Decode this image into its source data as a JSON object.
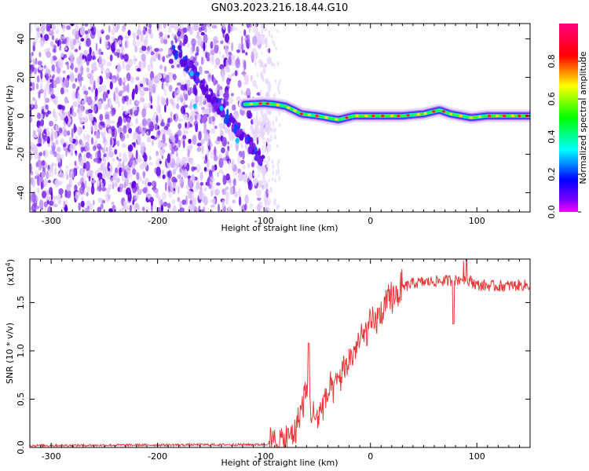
{
  "title": "GN03.2023.216.18.44.G10",
  "chart_data": [
    {
      "type": "heatmap",
      "xlabel": "Height of straight line (km)",
      "ylabel": "Frequency (Hz)",
      "xlim": [
        -320,
        150
      ],
      "ylim": [
        -50,
        48
      ],
      "xticks": [
        -300,
        -200,
        -100,
        0,
        100
      ],
      "yticks": [
        -40,
        -20,
        0,
        20,
        40
      ],
      "colorbar": {
        "label": "Normalized spectral amplitude",
        "range": [
          0,
          1
        ],
        "ticks": [
          0.0,
          0.2,
          0.4,
          0.6,
          0.8
        ],
        "colors": [
          "#ff00ff",
          "#ff0000",
          "#ffff00",
          "#00ff00",
          "#00ffff",
          "#0000ff",
          "#ff00ff"
        ]
      },
      "noise_region_x": [
        -320,
        -95
      ],
      "trend": [
        {
          "x": -185,
          "y": 35
        },
        {
          "x": -165,
          "y": 22
        },
        {
          "x": -150,
          "y": 10
        },
        {
          "x": -135,
          "y": 0
        },
        {
          "x": -120,
          "y": -10
        },
        {
          "x": -100,
          "y": -25
        }
      ],
      "trace": [
        {
          "x": -118,
          "y": 6
        },
        {
          "x": -100,
          "y": 6.5
        },
        {
          "x": -90,
          "y": 6
        },
        {
          "x": -80,
          "y": 5
        },
        {
          "x": -72,
          "y": 3
        },
        {
          "x": -65,
          "y": 1
        },
        {
          "x": -50,
          "y": 0
        },
        {
          "x": -40,
          "y": -1
        },
        {
          "x": -30,
          "y": -2
        },
        {
          "x": -15,
          "y": 0
        },
        {
          "x": 0,
          "y": 0
        },
        {
          "x": 30,
          "y": 0
        },
        {
          "x": 50,
          "y": 1
        },
        {
          "x": 65,
          "y": 3
        },
        {
          "x": 75,
          "y": 1
        },
        {
          "x": 85,
          "y": 0
        },
        {
          "x": 95,
          "y": -1
        },
        {
          "x": 110,
          "y": 0
        },
        {
          "x": 150,
          "y": 0
        }
      ]
    },
    {
      "type": "line",
      "xlabel": "Height of straight line (km)",
      "ylabel": "SNR (10 * v/v)",
      "yscale_label": "(x10",
      "yscale_exp": "4",
      "xlim": [
        -320,
        150
      ],
      "ylim": [
        0,
        1.95
      ],
      "xticks": [
        -300,
        -200,
        -100,
        0,
        100
      ],
      "yticks": [
        0.0,
        0.5,
        1.0,
        1.5
      ],
      "series": [
        {
          "color": "#e83a3a",
          "x": [
            -320,
            -100,
            -80,
            -70,
            -65,
            -60,
            -55,
            -50,
            -45,
            -40,
            -35,
            -30,
            -20,
            -10,
            0,
            10,
            20,
            30,
            40,
            60,
            80,
            90,
            100,
            120,
            150
          ],
          "values": [
            0.02,
            0.03,
            0.07,
            0.2,
            0.4,
            0.6,
            0.35,
            0.3,
            0.45,
            0.55,
            0.6,
            0.7,
            0.9,
            1.1,
            1.25,
            1.38,
            1.55,
            1.65,
            1.7,
            1.72,
            1.73,
            1.75,
            1.68,
            1.67,
            1.68
          ]
        }
      ]
    }
  ]
}
